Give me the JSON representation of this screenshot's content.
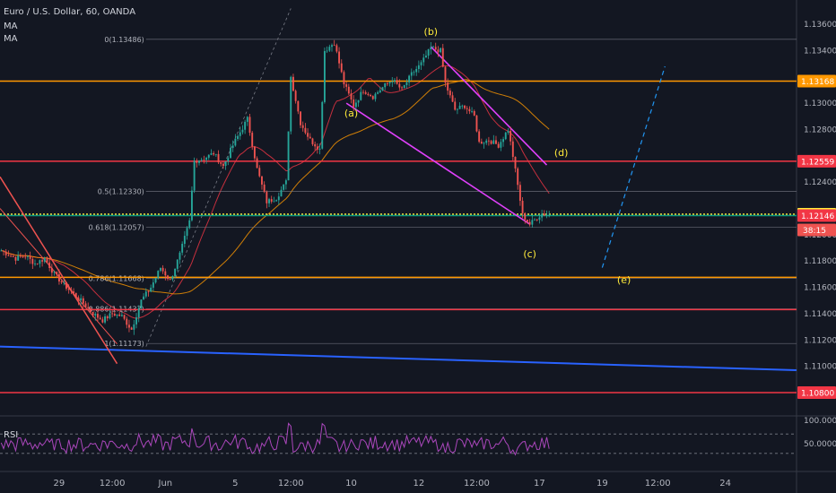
{
  "header": {
    "symbol": "Euro / U.S. Dollar, 60, OANDA",
    "indicators": [
      "MA",
      "MA"
    ]
  },
  "rsi_label": "RSI",
  "chart_data": {
    "type": "candlestick",
    "title": "Euro / U.S. Dollar, 60, OANDA",
    "price_axis": {
      "ticks": [
        "1.13600",
        "1.13400",
        "1.13000",
        "1.12800",
        "1.12400",
        "1.12000",
        "1.11800",
        "1.11600",
        "1.11400",
        "1.11200",
        "1.11000"
      ],
      "tick_values": [
        1.136,
        1.134,
        1.13,
        1.128,
        1.124,
        1.12,
        1.118,
        1.116,
        1.114,
        1.112,
        1.11
      ],
      "range": [
        1.1065,
        1.1373
      ]
    },
    "time_axis": {
      "labels": [
        "29",
        "12:00",
        "Jun",
        "5",
        "12:00",
        "10",
        "12",
        "12:00",
        "17",
        "19",
        "12:00",
        "24"
      ],
      "positions_bars": [
        24,
        46,
        68,
        97,
        120,
        145,
        173,
        197,
        223,
        249,
        272,
        300
      ]
    },
    "price_path": [
      [
        0,
        1.1188
      ],
      [
        6,
        1.1182
      ],
      [
        10,
        1.1184
      ],
      [
        14,
        1.1178
      ],
      [
        18,
        1.1182
      ],
      [
        22,
        1.117
      ],
      [
        26,
        1.1162
      ],
      [
        30,
        1.1155
      ],
      [
        34,
        1.1148
      ],
      [
        38,
        1.114
      ],
      [
        42,
        1.1135
      ],
      [
        46,
        1.114
      ],
      [
        50,
        1.1138
      ],
      [
        54,
        1.1128
      ],
      [
        58,
        1.115
      ],
      [
        62,
        1.116
      ],
      [
        66,
        1.1175
      ],
      [
        70,
        1.1165
      ],
      [
        74,
        1.1185
      ],
      [
        78,
        1.121
      ],
      [
        80,
        1.1256
      ],
      [
        84,
        1.1258
      ],
      [
        88,
        1.1262
      ],
      [
        92,
        1.1252
      ],
      [
        96,
        1.1268
      ],
      [
        102,
        1.1288
      ],
      [
        106,
        1.125
      ],
      [
        110,
        1.1225
      ],
      [
        114,
        1.1228
      ],
      [
        118,
        1.124
      ],
      [
        120,
        1.132
      ],
      [
        124,
        1.1285
      ],
      [
        128,
        1.1272
      ],
      [
        132,
        1.1265
      ],
      [
        134,
        1.134
      ],
      [
        138,
        1.1346
      ],
      [
        142,
        1.1315
      ],
      [
        146,
        1.1298
      ],
      [
        150,
        1.131
      ],
      [
        154,
        1.1305
      ],
      [
        158,
        1.1312
      ],
      [
        162,
        1.1318
      ],
      [
        166,
        1.131
      ],
      [
        170,
        1.1322
      ],
      [
        174,
        1.133
      ],
      [
        178,
        1.1342
      ],
      [
        182,
        1.134
      ],
      [
        184,
        1.1315
      ],
      [
        188,
        1.1295
      ],
      [
        192,
        1.1298
      ],
      [
        196,
        1.129
      ],
      [
        198,
        1.127
      ],
      [
        202,
        1.1272
      ],
      [
        206,
        1.1268
      ],
      [
        210,
        1.128
      ],
      [
        212,
        1.126
      ],
      [
        216,
        1.1215
      ],
      [
        219,
        1.1208
      ],
      [
        222,
        1.1213
      ],
      [
        224,
        1.1216
      ],
      [
        227,
        1.1215
      ]
    ],
    "horizontal_lines": [
      {
        "price": 1.13168,
        "color": "#ff9800",
        "label": "1.13168",
        "label_bg": "#ff9800"
      },
      {
        "price": 1.12559,
        "color": "#f23645",
        "label": "1.12559",
        "label_bg": "#f23645"
      },
      {
        "price": 1.12156,
        "color": "#ffeb3b",
        "style": "dotted",
        "label": "1.12156",
        "label_bg": "#ffeb3b"
      },
      {
        "price": 1.12146,
        "color": "#089981",
        "label": "1.12146",
        "label_bg": "#f23645"
      },
      {
        "price": 1.11676,
        "color": "#ff9800"
      },
      {
        "price": 1.11431,
        "color": "#f23645"
      },
      {
        "price": 1.108,
        "color": "#f23645",
        "label": "1.10800",
        "label_bg": "#f23645"
      }
    ],
    "countdown": "38:15",
    "fibonacci": [
      {
        "ratio": "0",
        "price": 1.13486,
        "text": "0(1.13486)"
      },
      {
        "ratio": "0.5",
        "price": 1.1233,
        "text": "0.5(1.12330)"
      },
      {
        "ratio": "0.618",
        "price": 1.12057,
        "text": "0.618(1.12057)"
      },
      {
        "ratio": "0.786",
        "price": 1.11668,
        "text": "0.786(1.11668)"
      },
      {
        "ratio": "0.886",
        "price": 1.11437,
        "text": "0.886(1.11437)"
      },
      {
        "ratio": "1",
        "price": 1.11173,
        "text": "1(1.11173)"
      }
    ],
    "wave_labels": [
      "(a)",
      "(b)",
      "(c)",
      "(d)",
      "(e)"
    ],
    "rsi": {
      "ticks": [
        "100.0000",
        "50.0000"
      ],
      "range": [
        0,
        100
      ],
      "upper": 70,
      "lower": 30
    },
    "colors": {
      "background": "#131722",
      "up": "#26a69a",
      "down": "#ef5350",
      "ma_fast": "#f23645",
      "ma_slow": "#ff9800",
      "trendline": "#2962ff",
      "channel": "#e040fb",
      "wave_labels": "#ffeb3b",
      "rsi": "#ab47bc"
    }
  }
}
